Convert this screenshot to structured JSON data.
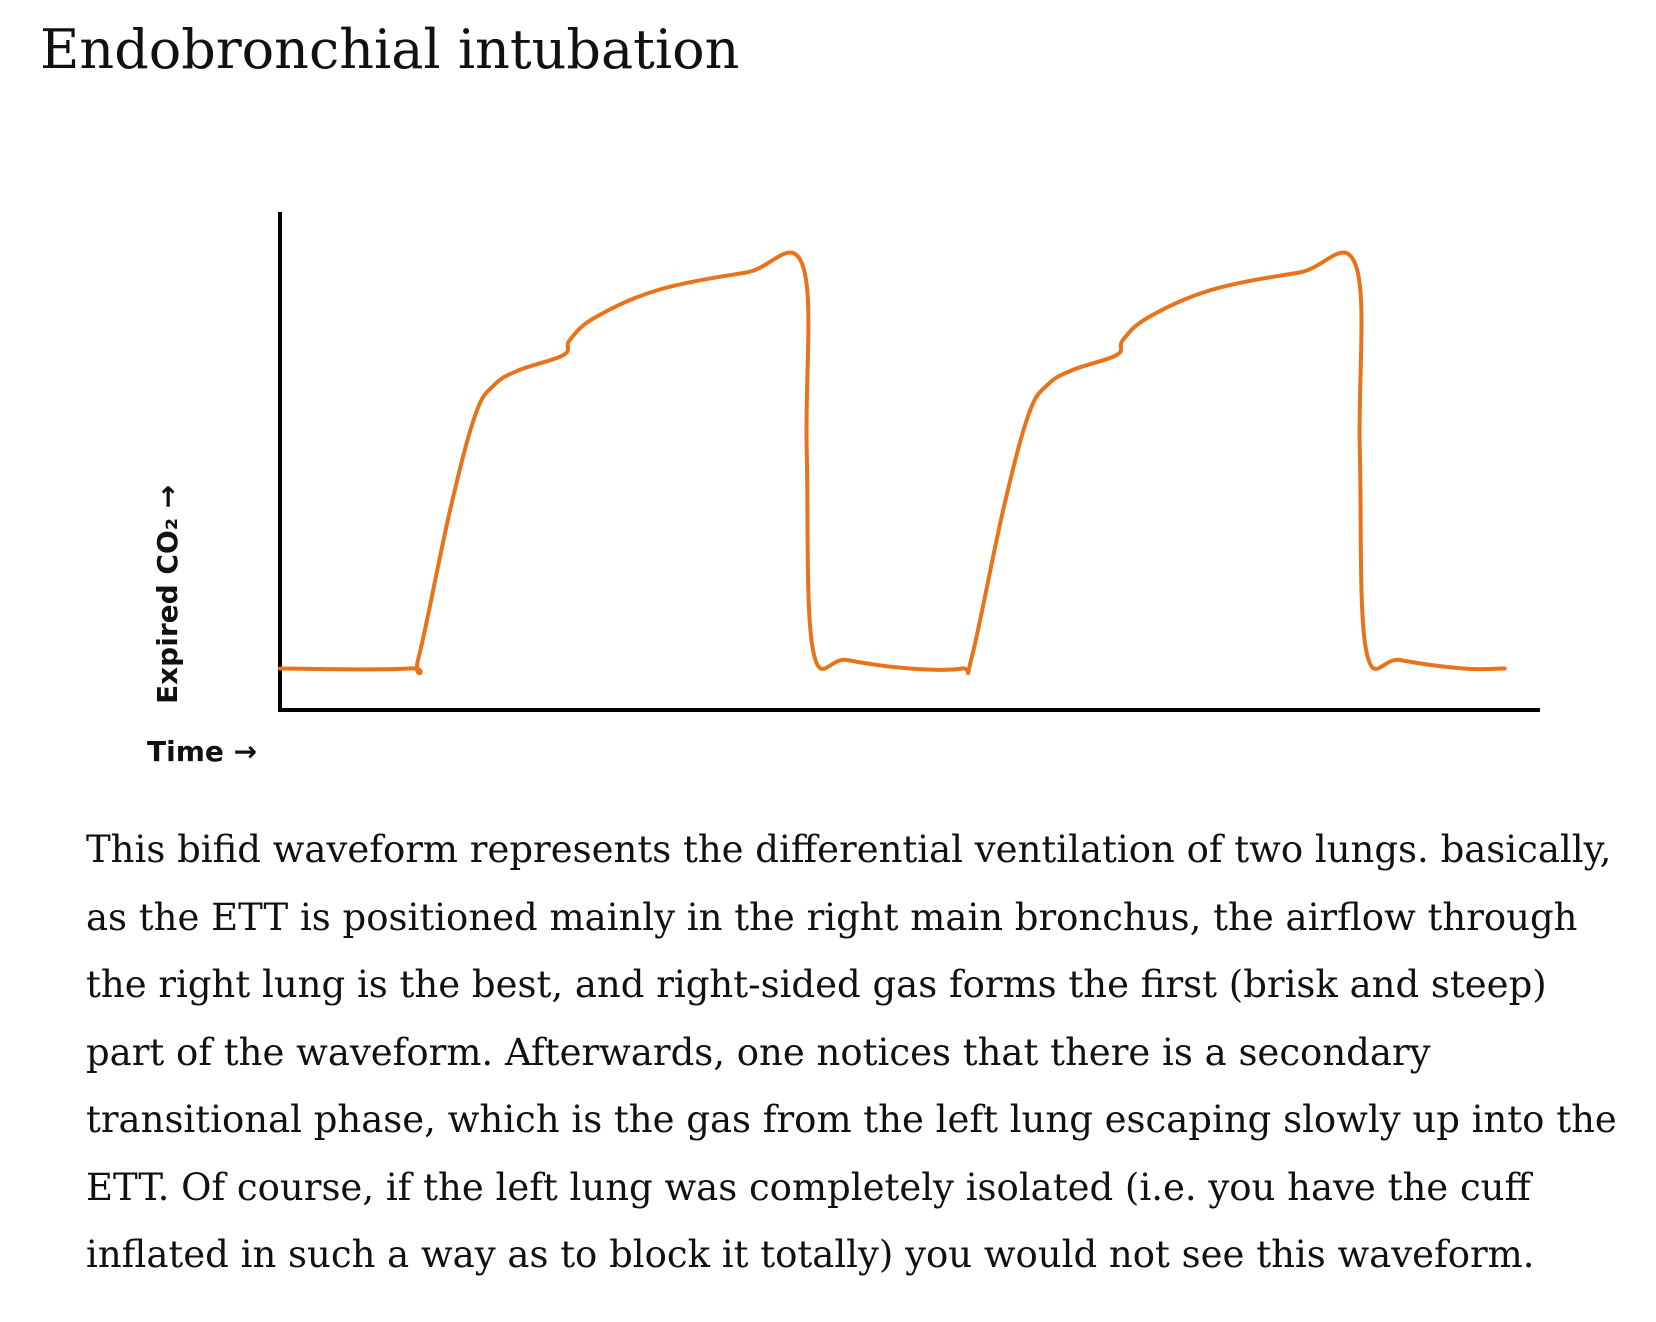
{
  "page": {
    "title": "Endobronchial intubation",
    "paragraph": "This bifid waveform represents the differential ventilation of two lungs. basically, as the ETT is positioned mainly in the right main bronchus, the airflow through the right lung is the best, and right-sided gas forms the first (brisk and steep) part of the waveform. Afterwards, one notices that there is a secondary transitional phase, which is the gas from the left lung escaping slowly up into the ETT. Of course, if the left lung was completely isolated (i.e. you have the cuff inflated in such a way as to block it totally) you would not see this waveform."
  },
  "chart_data": {
    "type": "line",
    "title": "",
    "xlabel": "Time →",
    "ylabel": "Expired CO₂ →",
    "ticks": false,
    "grid": false,
    "legend": "none",
    "xlim": [
      0,
      100
    ],
    "ylim": [
      0,
      100
    ],
    "series": [
      {
        "color": "#e8731a",
        "x": [
          0,
          10.2,
          11.0,
          13.5,
          15.5,
          17.0,
          19.0,
          22.5,
          23.0,
          25.0,
          30.0,
          37.0,
          41.5,
          41.8,
          42.3,
          45.0,
          50.0,
          54.1,
          54.9,
          57.4,
          59.4,
          60.9,
          62.9,
          66.4,
          66.9,
          68.9,
          73.9,
          80.9,
          85.4,
          85.7,
          86.2,
          88.9,
          93.9,
          97.2
        ],
        "y": [
          8.3,
          8.3,
          10.5,
          40,
          59,
          65,
          68,
          71,
          74,
          78.5,
          84,
          87.5,
          88.8,
          52,
          12,
          10,
          8.3,
          8.3,
          10.5,
          40,
          59,
          65,
          68,
          71,
          74,
          78.5,
          84,
          87.5,
          88.8,
          52,
          12,
          10,
          8.3,
          8.3
        ]
      }
    ],
    "axis_color": "#000000"
  }
}
